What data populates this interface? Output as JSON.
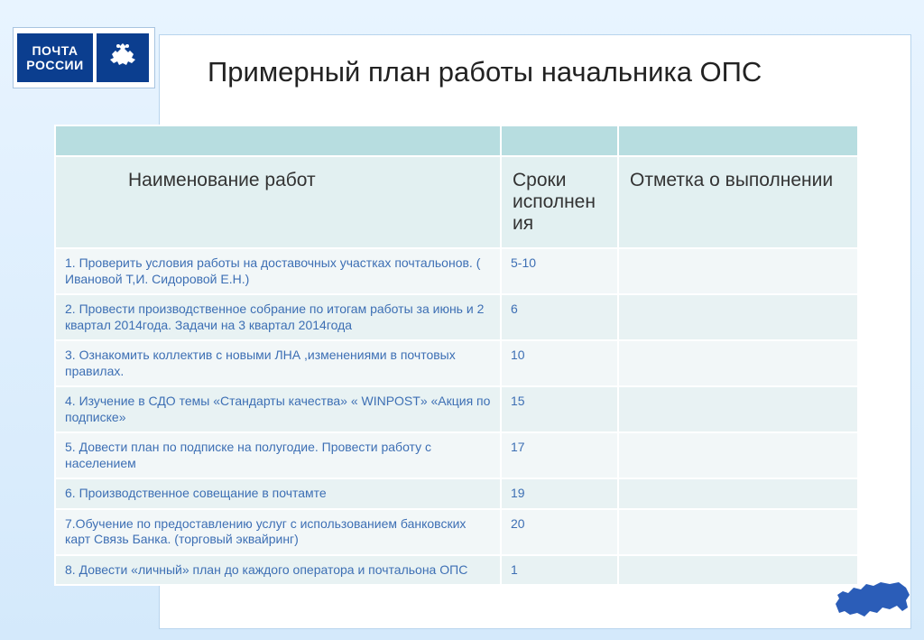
{
  "logo": {
    "line1": "ПОЧТА",
    "line2": "РОССИИ"
  },
  "title": "Примерный план работы начальника ОПС",
  "colors": {
    "slide_grad_top": "#e8f4ff",
    "slide_grad_bot": "#d4e9fb",
    "panel_bg": "#ffffff",
    "panel_border": "#b8d4ed",
    "logo_bg": "#0b3e8f",
    "spacer_bg": "#b7dde0",
    "header_bg": "#e2f0f1",
    "row_odd": "#f2f7f8",
    "row_even": "#e8f2f3",
    "text_body": "#3d6fb4",
    "map_fill": "#2b5db8"
  },
  "table": {
    "headers": {
      "col1": "Наименование работ",
      "col2": "Сроки исполнен ия",
      "col3": "Отметка о выполнении"
    },
    "rows": [
      {
        "name": "1. Проверить условия работы на доставочных  участках почтальонов. ( Ивановой  Т,И. Сидоровой Е.Н.)",
        "due": "5-10",
        "mark": ""
      },
      {
        "name": "2. Провести производственное  собрание по итогам работы за июнь и 2 квартал 2014года. Задачи на 3 квартал 2014года",
        "due": "6",
        "mark": ""
      },
      {
        "name": "3. Ознакомить коллектив с новыми ЛНА ,изменениями в почтовых правилах.",
        "due": "10",
        "mark": ""
      },
      {
        "name": "4. Изучение в СДО темы  «Стандарты качества»  « WINPOST»  «Акция по подписке»",
        "due": "15",
        "mark": ""
      },
      {
        "name": "5. Довести план по подписке на полугодие. Провести работу  с населением",
        "due": "17",
        "mark": ""
      },
      {
        "name": "6. Производственное совещание в почтамте",
        "due": "19",
        "mark": ""
      },
      {
        "name": "7.Обучение по  предоставлению услуг  с использованием банковских карт Связь Банка. (торговый   эквайринг)",
        "due": "20",
        "mark": ""
      },
      {
        "name": "8. Довести «личный»  план  до каждого оператора и почтальона ОПС",
        "due": "1",
        "mark": ""
      }
    ]
  },
  "fonts": {
    "title_size": 31,
    "header_size": 21,
    "body_size": 14
  }
}
